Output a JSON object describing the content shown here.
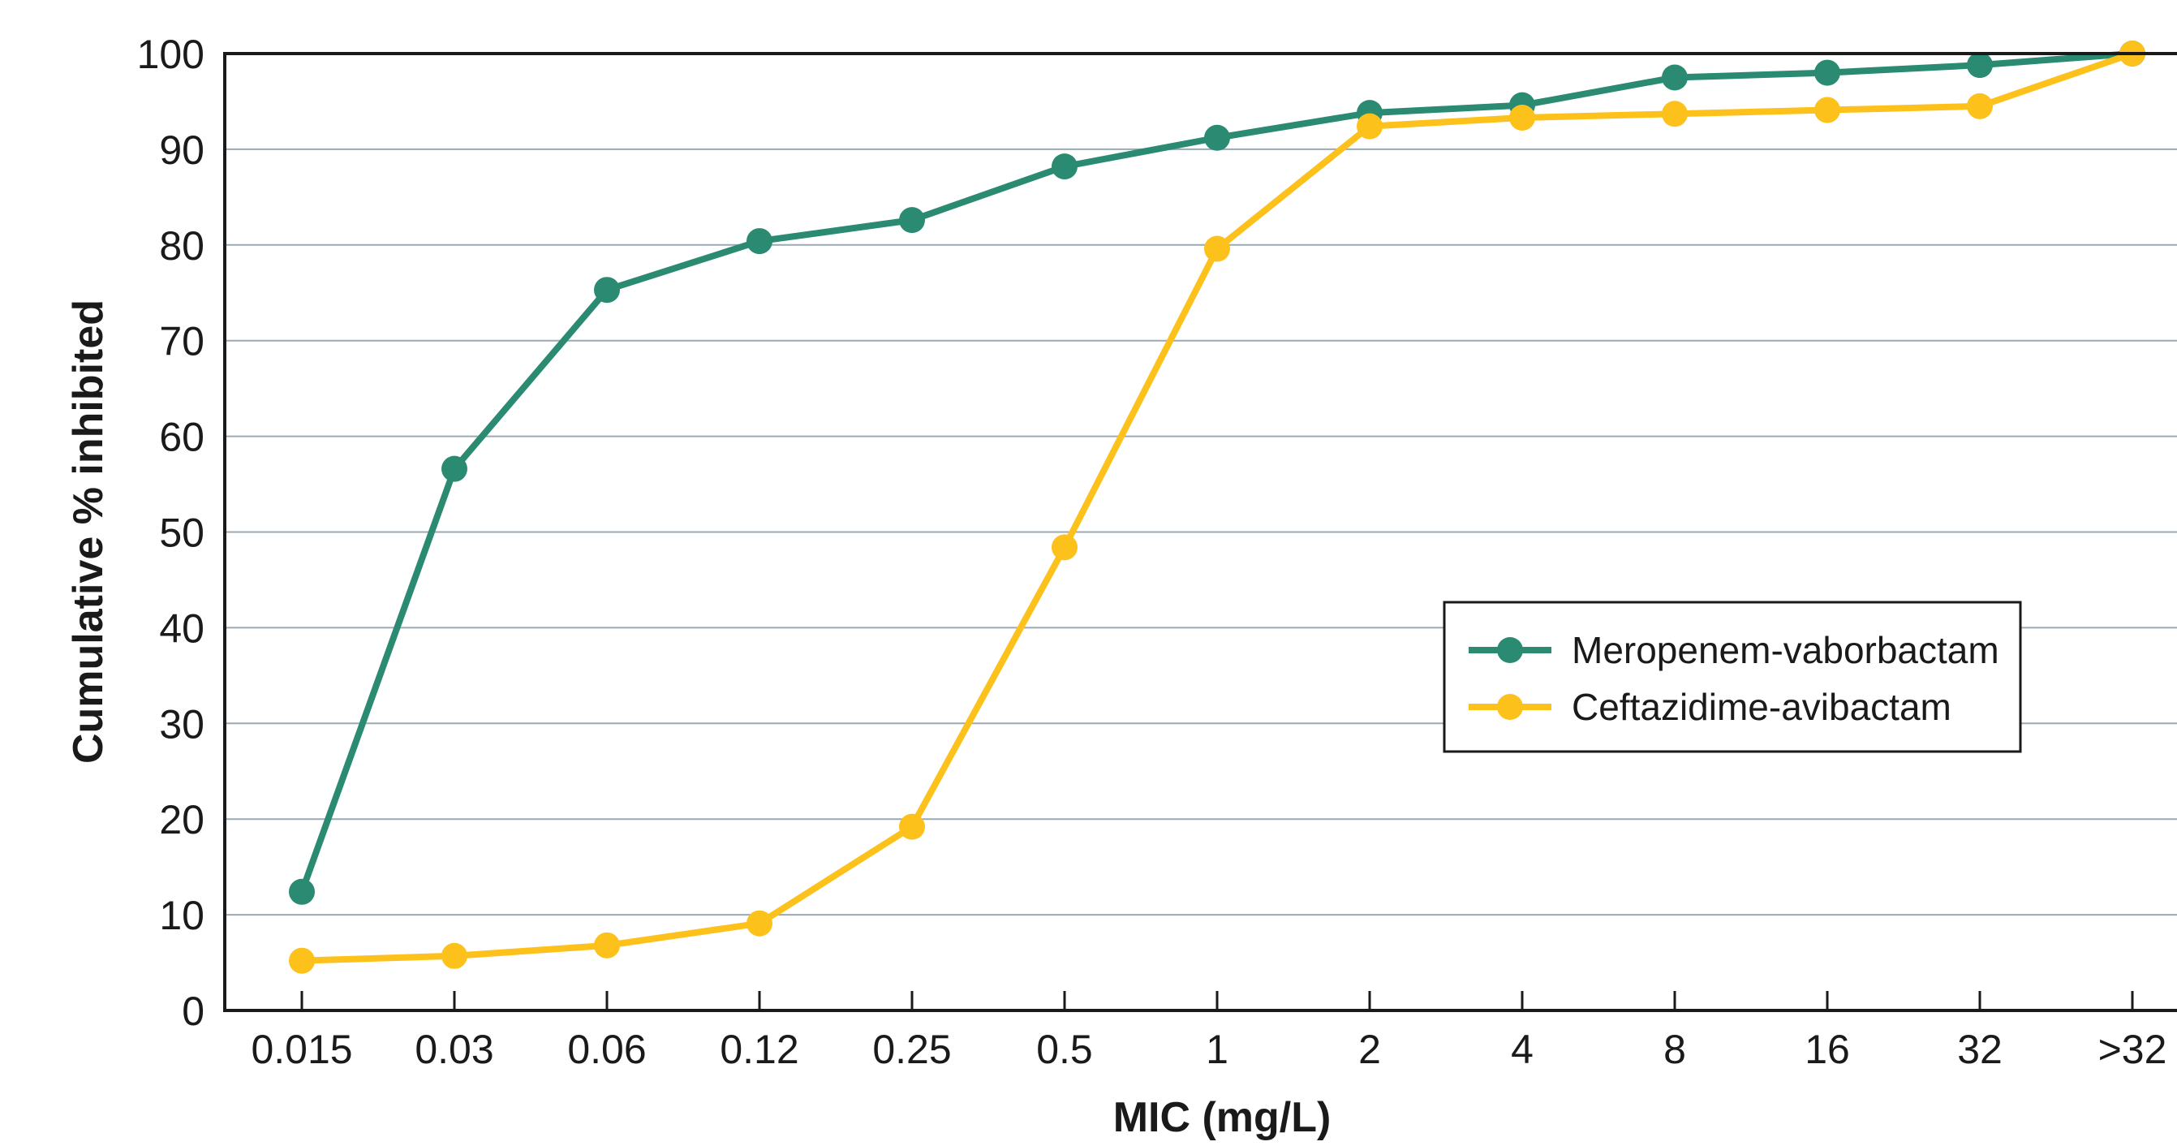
{
  "chart_data": {
    "type": "line",
    "title": "",
    "xlabel": "MIC (mg/L)",
    "ylabel": "Cumulative % inhibited",
    "categories": [
      "0.015",
      "0.03",
      "0.06",
      "0.12",
      "0.25",
      "0.5",
      "1",
      "2",
      "4",
      "8",
      "16",
      "32",
      ">32"
    ],
    "ylim": [
      0,
      100
    ],
    "yticks": [
      "0",
      "10",
      "20",
      "30",
      "40",
      "50",
      "60",
      "70",
      "80",
      "90",
      "100"
    ],
    "grid": "horizontal",
    "legend_position": "right",
    "series": [
      {
        "name": "Meropenem-vaborbactam",
        "color": "#2b8a72",
        "values": [
          12.4,
          56.6,
          75.3,
          80.4,
          82.6,
          88.2,
          91.2,
          93.8,
          94.6,
          97.5,
          98.0,
          98.8,
          100
        ]
      },
      {
        "name": "Ceftazidime-avibactam",
        "color": "#fdc11c",
        "values": [
          5.2,
          5.7,
          6.8,
          9.1,
          19.2,
          48.4,
          79.6,
          92.4,
          93.3,
          93.7,
          94.1,
          94.5,
          100
        ]
      }
    ]
  }
}
